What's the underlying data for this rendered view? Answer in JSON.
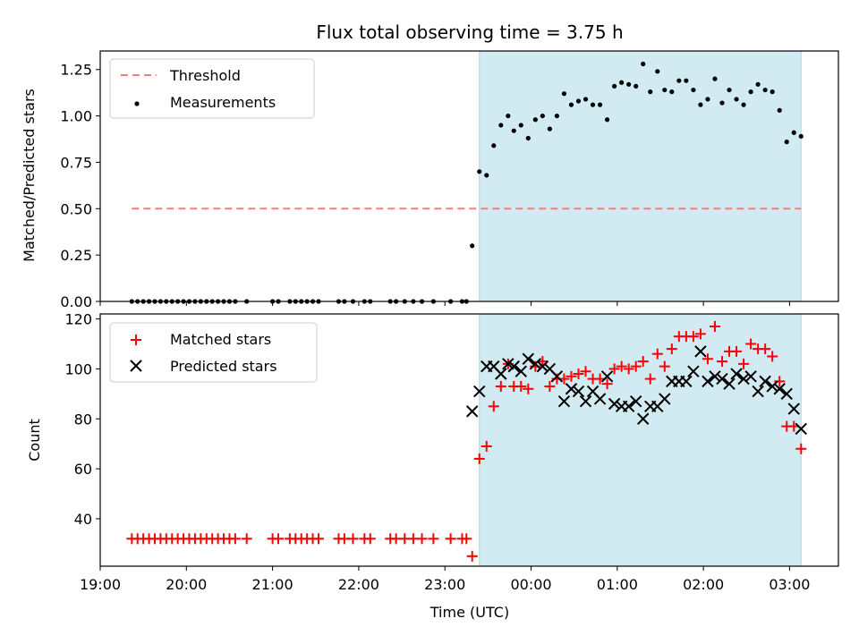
{
  "chart_data": {
    "type": "scatter",
    "title": "Flux total observing time = 3.75 h",
    "xlabel": "Time (UTC)",
    "x_ticks": [
      "19:00",
      "20:00",
      "21:00",
      "22:00",
      "23:00",
      "00:00",
      "01:00",
      "02:00",
      "03:00"
    ],
    "colors": {
      "threshold": "#f08080",
      "measurements": "#000000",
      "matched": "#ff0000",
      "predicted": "#000000",
      "shade": "#add8e6"
    },
    "panels": [
      {
        "ylabel": "Matched/Predicted stars",
        "ylim": [
          0,
          1.35
        ],
        "y_ticks": [
          "0.00",
          "0.25",
          "0.50",
          "0.75",
          "1.00",
          "1.25"
        ],
        "legend": [
          "Threshold",
          "Measurements"
        ],
        "threshold": {
          "name": "Threshold",
          "value": 0.5,
          "x_start": "19:22",
          "x_end": "03:08"
        },
        "observing_window": {
          "start": "23:24",
          "end": "03:08"
        },
        "series": [
          {
            "name": "Measurements",
            "points": [
              [
                "19:22",
                0
              ],
              [
                "19:26",
                0
              ],
              [
                "19:30",
                0
              ],
              [
                "19:34",
                0
              ],
              [
                "19:38",
                0
              ],
              [
                "19:42",
                0
              ],
              [
                "19:46",
                0
              ],
              [
                "19:50",
                0
              ],
              [
                "19:54",
                0
              ],
              [
                "19:58",
                0
              ],
              [
                "20:02",
                0
              ],
              [
                "20:06",
                0
              ],
              [
                "20:10",
                0
              ],
              [
                "20:14",
                0
              ],
              [
                "20:18",
                0
              ],
              [
                "20:22",
                0
              ],
              [
                "20:26",
                0
              ],
              [
                "20:30",
                0
              ],
              [
                "20:34",
                0
              ],
              [
                "20:42",
                0
              ],
              [
                "21:00",
                0
              ],
              [
                "21:04",
                0
              ],
              [
                "21:12",
                0
              ],
              [
                "21:16",
                0
              ],
              [
                "21:20",
                0
              ],
              [
                "21:24",
                0
              ],
              [
                "21:28",
                0
              ],
              [
                "21:32",
                0
              ],
              [
                "21:46",
                0
              ],
              [
                "21:50",
                0
              ],
              [
                "21:56",
                0
              ],
              [
                "22:04",
                0
              ],
              [
                "22:08",
                0
              ],
              [
                "22:22",
                0
              ],
              [
                "22:26",
                0
              ],
              [
                "22:32",
                0
              ],
              [
                "22:38",
                0
              ],
              [
                "22:44",
                0
              ],
              [
                "22:52",
                0
              ],
              [
                "23:04",
                0
              ],
              [
                "23:12",
                0
              ],
              [
                "23:15",
                0
              ],
              [
                "23:19",
                0.3
              ],
              [
                "23:24",
                0.7
              ],
              [
                "23:29",
                0.68
              ],
              [
                "23:34",
                0.84
              ],
              [
                "23:39",
                0.95
              ],
              [
                "23:44",
                1.0
              ],
              [
                "23:48",
                0.92
              ],
              [
                "23:53",
                0.95
              ],
              [
                "23:58",
                0.88
              ],
              [
                "00:03",
                0.98
              ],
              [
                "00:08",
                1.0
              ],
              [
                "00:13",
                0.93
              ],
              [
                "00:18",
                1.0
              ],
              [
                "00:23",
                1.12
              ],
              [
                "00:28",
                1.06
              ],
              [
                "00:33",
                1.08
              ],
              [
                "00:38",
                1.09
              ],
              [
                "00:43",
                1.06
              ],
              [
                "00:48",
                1.06
              ],
              [
                "00:53",
                0.98
              ],
              [
                "00:58",
                1.16
              ],
              [
                "01:03",
                1.18
              ],
              [
                "01:08",
                1.17
              ],
              [
                "01:13",
                1.16
              ],
              [
                "01:18",
                1.28
              ],
              [
                "01:23",
                1.13
              ],
              [
                "01:28",
                1.24
              ],
              [
                "01:33",
                1.14
              ],
              [
                "01:38",
                1.13
              ],
              [
                "01:43",
                1.19
              ],
              [
                "01:48",
                1.19
              ],
              [
                "01:53",
                1.14
              ],
              [
                "01:58",
                1.06
              ],
              [
                "02:03",
                1.09
              ],
              [
                "02:08",
                1.2
              ],
              [
                "02:13",
                1.07
              ],
              [
                "02:18",
                1.14
              ],
              [
                "02:23",
                1.09
              ],
              [
                "02:28",
                1.06
              ],
              [
                "02:33",
                1.13
              ],
              [
                "02:38",
                1.17
              ],
              [
                "02:43",
                1.14
              ],
              [
                "02:48",
                1.13
              ],
              [
                "02:53",
                1.03
              ],
              [
                "02:58",
                0.86
              ],
              [
                "03:03",
                0.91
              ],
              [
                "03:08",
                0.89
              ]
            ]
          }
        ]
      },
      {
        "ylabel": "Count",
        "ylim": [
          21,
          122
        ],
        "y_ticks": [
          "40",
          "60",
          "80",
          "100",
          "120"
        ],
        "legend": [
          "Matched stars",
          "Predicted stars"
        ],
        "observing_window": {
          "start": "23:24",
          "end": "03:08"
        },
        "series": [
          {
            "name": "Matched stars",
            "points": [
              [
                "19:22",
                32
              ],
              [
                "19:26",
                32
              ],
              [
                "19:30",
                32
              ],
              [
                "19:34",
                32
              ],
              [
                "19:38",
                32
              ],
              [
                "19:42",
                32
              ],
              [
                "19:46",
                32
              ],
              [
                "19:50",
                32
              ],
              [
                "19:54",
                32
              ],
              [
                "19:58",
                32
              ],
              [
                "20:02",
                32
              ],
              [
                "20:06",
                32
              ],
              [
                "20:10",
                32
              ],
              [
                "20:14",
                32
              ],
              [
                "20:18",
                32
              ],
              [
                "20:22",
                32
              ],
              [
                "20:26",
                32
              ],
              [
                "20:30",
                32
              ],
              [
                "20:34",
                32
              ],
              [
                "20:42",
                32
              ],
              [
                "21:00",
                32
              ],
              [
                "21:04",
                32
              ],
              [
                "21:12",
                32
              ],
              [
                "21:16",
                32
              ],
              [
                "21:20",
                32
              ],
              [
                "21:24",
                32
              ],
              [
                "21:28",
                32
              ],
              [
                "21:32",
                32
              ],
              [
                "21:46",
                32
              ],
              [
                "21:50",
                32
              ],
              [
                "21:56",
                32
              ],
              [
                "22:04",
                32
              ],
              [
                "22:08",
                32
              ],
              [
                "22:22",
                32
              ],
              [
                "22:26",
                32
              ],
              [
                "22:32",
                32
              ],
              [
                "22:38",
                32
              ],
              [
                "22:44",
                32
              ],
              [
                "22:52",
                32
              ],
              [
                "23:04",
                32
              ],
              [
                "23:12",
                32
              ],
              [
                "23:15",
                32
              ],
              [
                "23:19",
                25
              ],
              [
                "23:24",
                64
              ],
              [
                "23:29",
                69
              ],
              [
                "23:34",
                85
              ],
              [
                "23:39",
                93
              ],
              [
                "23:44",
                102
              ],
              [
                "23:48",
                93
              ],
              [
                "23:53",
                93
              ],
              [
                "23:58",
                92
              ],
              [
                "00:03",
                101
              ],
              [
                "00:08",
                103
              ],
              [
                "00:13",
                93
              ],
              [
                "00:18",
                96
              ],
              [
                "00:23",
                96
              ],
              [
                "00:28",
                97
              ],
              [
                "00:33",
                98
              ],
              [
                "00:38",
                99
              ],
              [
                "00:43",
                96
              ],
              [
                "00:48",
                96
              ],
              [
                "00:53",
                94
              ],
              [
                "00:58",
                100
              ],
              [
                "01:03",
                101
              ],
              [
                "01:08",
                100
              ],
              [
                "01:13",
                101
              ],
              [
                "01:18",
                103
              ],
              [
                "01:23",
                96
              ],
              [
                "01:28",
                106
              ],
              [
                "01:33",
                101
              ],
              [
                "01:38",
                108
              ],
              [
                "01:43",
                113
              ],
              [
                "01:48",
                113
              ],
              [
                "01:53",
                113
              ],
              [
                "01:58",
                114
              ],
              [
                "02:03",
                104
              ],
              [
                "02:08",
                117
              ],
              [
                "02:13",
                103
              ],
              [
                "02:18",
                107
              ],
              [
                "02:23",
                107
              ],
              [
                "02:28",
                102
              ],
              [
                "02:33",
                110
              ],
              [
                "02:38",
                108
              ],
              [
                "02:43",
                108
              ],
              [
                "02:48",
                105
              ],
              [
                "02:53",
                95
              ],
              [
                "02:58",
                77
              ],
              [
                "03:03",
                77
              ],
              [
                "03:08",
                68
              ]
            ]
          },
          {
            "name": "Predicted stars",
            "points": [
              [
                "23:19",
                83
              ],
              [
                "23:24",
                91
              ],
              [
                "23:29",
                101
              ],
              [
                "23:34",
                101
              ],
              [
                "23:39",
                98
              ],
              [
                "23:44",
                102
              ],
              [
                "23:48",
                101
              ],
              [
                "23:53",
                99
              ],
              [
                "23:58",
                104
              ],
              [
                "00:03",
                102
              ],
              [
                "00:08",
                101
              ],
              [
                "00:13",
                100
              ],
              [
                "00:18",
                97
              ],
              [
                "00:23",
                87
              ],
              [
                "00:28",
                92
              ],
              [
                "00:33",
                91
              ],
              [
                "00:38",
                87
              ],
              [
                "00:43",
                91
              ],
              [
                "00:48",
                88
              ],
              [
                "00:53",
                97
              ],
              [
                "00:58",
                86
              ],
              [
                "01:03",
                85
              ],
              [
                "01:08",
                85
              ],
              [
                "01:13",
                87
              ],
              [
                "01:18",
                80
              ],
              [
                "01:23",
                85
              ],
              [
                "01:28",
                85
              ],
              [
                "01:33",
                88
              ],
              [
                "01:38",
                95
              ],
              [
                "01:43",
                95
              ],
              [
                "01:48",
                95
              ],
              [
                "01:53",
                99
              ],
              [
                "01:58",
                107
              ],
              [
                "02:03",
                95
              ],
              [
                "02:08",
                97
              ],
              [
                "02:13",
                96
              ],
              [
                "02:18",
                94
              ],
              [
                "02:23",
                98
              ],
              [
                "02:28",
                96
              ],
              [
                "02:33",
                97
              ],
              [
                "02:38",
                91
              ],
              [
                "02:43",
                95
              ],
              [
                "02:48",
                93
              ],
              [
                "02:53",
                92
              ],
              [
                "02:58",
                90
              ],
              [
                "03:03",
                84
              ],
              [
                "03:08",
                76
              ]
            ]
          }
        ]
      }
    ]
  }
}
